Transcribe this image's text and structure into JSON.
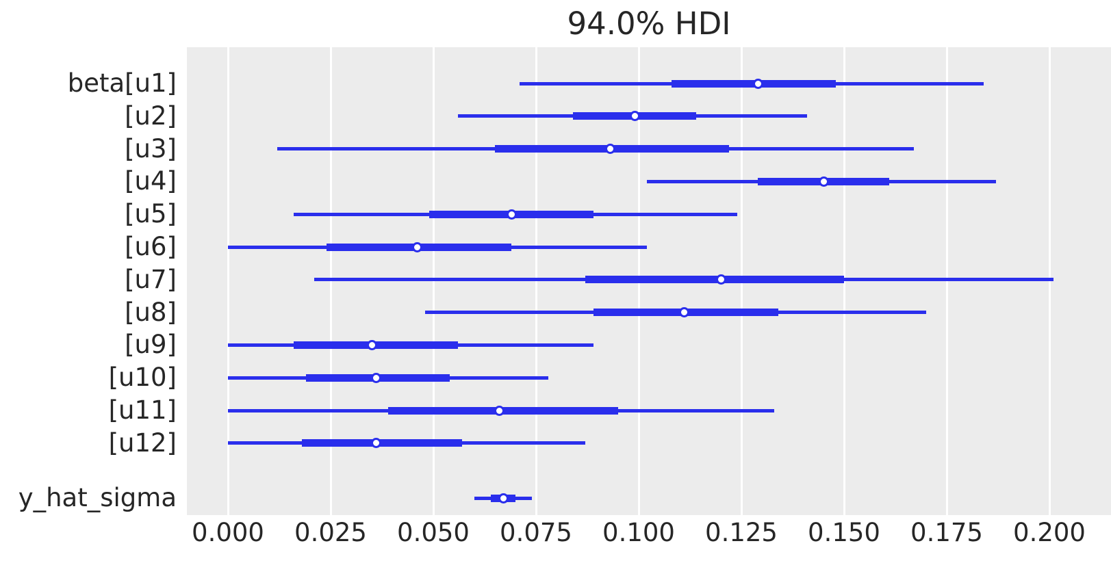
{
  "colors": {
    "line_blue": "#2a2eec",
    "plot_background": "#ececec",
    "grid_white": "#ffffff",
    "text": "#262626",
    "page_background": "#ffffff",
    "marker_fill": "#ffffff"
  },
  "chart_data": {
    "type": "forest",
    "title": "94.0% HDI",
    "hdi_probability_label": "94.0%",
    "xlabel": "",
    "ylabel": "",
    "grid": "vertical-only",
    "legend": "none",
    "xlim": [
      -0.01,
      0.215
    ],
    "x_tick_values": [
      0.0,
      0.025,
      0.05,
      0.075,
      0.1,
      0.125,
      0.15,
      0.175,
      0.2
    ],
    "x_tick_labels": [
      "0.000",
      "0.025",
      "0.050",
      "0.075",
      "0.100",
      "0.125",
      "0.150",
      "0.175",
      "0.200"
    ],
    "row_description": "Each row: thin line = 94% HDI interval, thick line = interquartile range, circle = point estimate (median)",
    "rows": [
      {
        "label": "beta[u1]",
        "group": "beta",
        "hdi_low": 0.071,
        "q_low": 0.108,
        "median": 0.129,
        "q_high": 0.148,
        "hdi_high": 0.184
      },
      {
        "label": "[u2]",
        "group": "beta",
        "hdi_low": 0.056,
        "q_low": 0.084,
        "median": 0.099,
        "q_high": 0.114,
        "hdi_high": 0.141
      },
      {
        "label": "[u3]",
        "group": "beta",
        "hdi_low": 0.012,
        "q_low": 0.065,
        "median": 0.093,
        "q_high": 0.122,
        "hdi_high": 0.167
      },
      {
        "label": "[u4]",
        "group": "beta",
        "hdi_low": 0.102,
        "q_low": 0.129,
        "median": 0.145,
        "q_high": 0.161,
        "hdi_high": 0.187
      },
      {
        "label": "[u5]",
        "group": "beta",
        "hdi_low": 0.016,
        "q_low": 0.049,
        "median": 0.069,
        "q_high": 0.089,
        "hdi_high": 0.124
      },
      {
        "label": "[u6]",
        "group": "beta",
        "hdi_low": 0.0,
        "q_low": 0.024,
        "median": 0.046,
        "q_high": 0.069,
        "hdi_high": 0.102
      },
      {
        "label": "[u7]",
        "group": "beta",
        "hdi_low": 0.021,
        "q_low": 0.087,
        "median": 0.12,
        "q_high": 0.15,
        "hdi_high": 0.201
      },
      {
        "label": "[u8]",
        "group": "beta",
        "hdi_low": 0.048,
        "q_low": 0.089,
        "median": 0.111,
        "q_high": 0.134,
        "hdi_high": 0.17
      },
      {
        "label": "[u9]",
        "group": "beta",
        "hdi_low": 0.0,
        "q_low": 0.016,
        "median": 0.035,
        "q_high": 0.056,
        "hdi_high": 0.089
      },
      {
        "label": "[u10]",
        "group": "beta",
        "hdi_low": 0.0,
        "q_low": 0.019,
        "median": 0.036,
        "q_high": 0.054,
        "hdi_high": 0.078
      },
      {
        "label": "[u11]",
        "group": "beta",
        "hdi_low": 0.0,
        "q_low": 0.039,
        "median": 0.066,
        "q_high": 0.095,
        "hdi_high": 0.133
      },
      {
        "label": "[u12]",
        "group": "beta",
        "hdi_low": 0.0,
        "q_low": 0.018,
        "median": 0.036,
        "q_high": 0.057,
        "hdi_high": 0.087
      },
      {
        "label": "y_hat_sigma",
        "group": "y_hat_sigma",
        "hdi_low": 0.06,
        "q_low": 0.064,
        "median": 0.067,
        "q_high": 0.07,
        "hdi_high": 0.074
      }
    ]
  }
}
